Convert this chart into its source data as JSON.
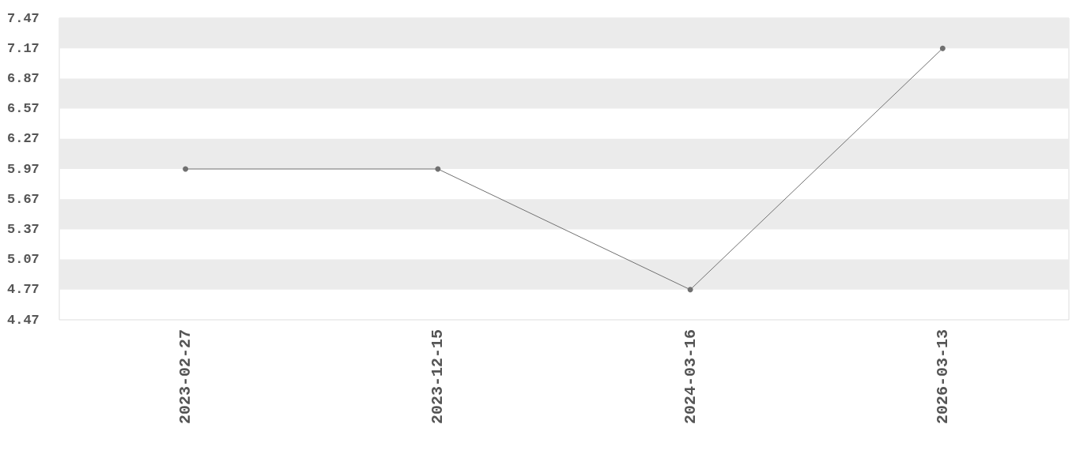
{
  "chart_data": {
    "type": "line",
    "categories": [
      "2023-02-27",
      "2023-12-15",
      "2024-03-16",
      "2026-03-13"
    ],
    "series": [
      {
        "color": "#707070",
        "values": [
          5.97,
          5.97,
          4.77,
          7.17
        ]
      }
    ],
    "ylim": [
      4.47,
      7.47
    ],
    "yticks": [
      4.47,
      4.77,
      5.07,
      5.37,
      5.67,
      5.97,
      6.27,
      6.57,
      6.87,
      7.17,
      7.47
    ],
    "bands": [
      {
        "axis": "y",
        "from": 4.77,
        "to": 5.07,
        "color": "#ebebeb"
      },
      {
        "axis": "y",
        "from": 5.37,
        "to": 5.67,
        "color": "#ebebeb"
      },
      {
        "axis": "y",
        "from": 5.97,
        "to": 6.27,
        "color": "#ebebeb"
      },
      {
        "axis": "y",
        "from": 6.57,
        "to": 6.87,
        "color": "#ebebeb"
      },
      {
        "axis": "y",
        "from": 7.17,
        "to": 7.47,
        "color": "#ebebeb"
      }
    ],
    "marker": "circle",
    "line_style": "solid"
  }
}
